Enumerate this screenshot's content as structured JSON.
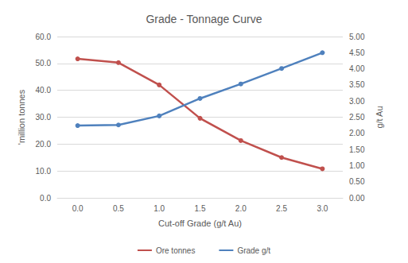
{
  "chart_data": {
    "type": "line",
    "title": "Grade - Tonnage Curve",
    "x_label": "Cut-off Grade (g/t Au)",
    "y_label": "'million tonnes",
    "y2_label": "g/t Au",
    "categories": [
      "0.0",
      "0.5",
      "1.0",
      "1.5",
      "2.0",
      "2.5",
      "3.0"
    ],
    "series": [
      {
        "name": "Ore tonnes",
        "color": "#c0504d",
        "marker": "circle",
        "values": [
          51.7,
          50.3,
          42.0,
          29.6,
          21.3,
          15.0,
          10.8
        ]
      },
      {
        "name": "Grade g/t",
        "color": "#4f81bd",
        "marker": "circle",
        "axis": "y2",
        "values": [
          2.24,
          2.26,
          2.54,
          3.08,
          3.53,
          4.01,
          4.5
        ]
      }
    ],
    "ylim": [
      0,
      60
    ],
    "yticks": [
      {
        "value": 0,
        "label": "0.0"
      },
      {
        "value": 10,
        "label": "10.0"
      },
      {
        "value": 20,
        "label": "20.0"
      },
      {
        "value": 30,
        "label": "30.0"
      },
      {
        "value": 40,
        "label": "40.0"
      },
      {
        "value": 50,
        "label": "50.0"
      },
      {
        "value": 60,
        "label": "60.0"
      }
    ],
    "y2lim": [
      0,
      5
    ],
    "y2ticks": [
      {
        "value": 0,
        "label": "0.00"
      },
      {
        "value": 0.5,
        "label": "0.50"
      },
      {
        "value": 1,
        "label": "1.00"
      },
      {
        "value": 1.5,
        "label": "1.50"
      },
      {
        "value": 2,
        "label": "2.00"
      },
      {
        "value": 2.5,
        "label": "2.50"
      },
      {
        "value": 3,
        "label": "3.00"
      },
      {
        "value": 3.5,
        "label": "3.50"
      },
      {
        "value": 4,
        "label": "4.00"
      },
      {
        "value": 4.5,
        "label": "4.50"
      },
      {
        "value": 5,
        "label": "5.00"
      }
    ],
    "grid": true,
    "legend": "bottom"
  }
}
